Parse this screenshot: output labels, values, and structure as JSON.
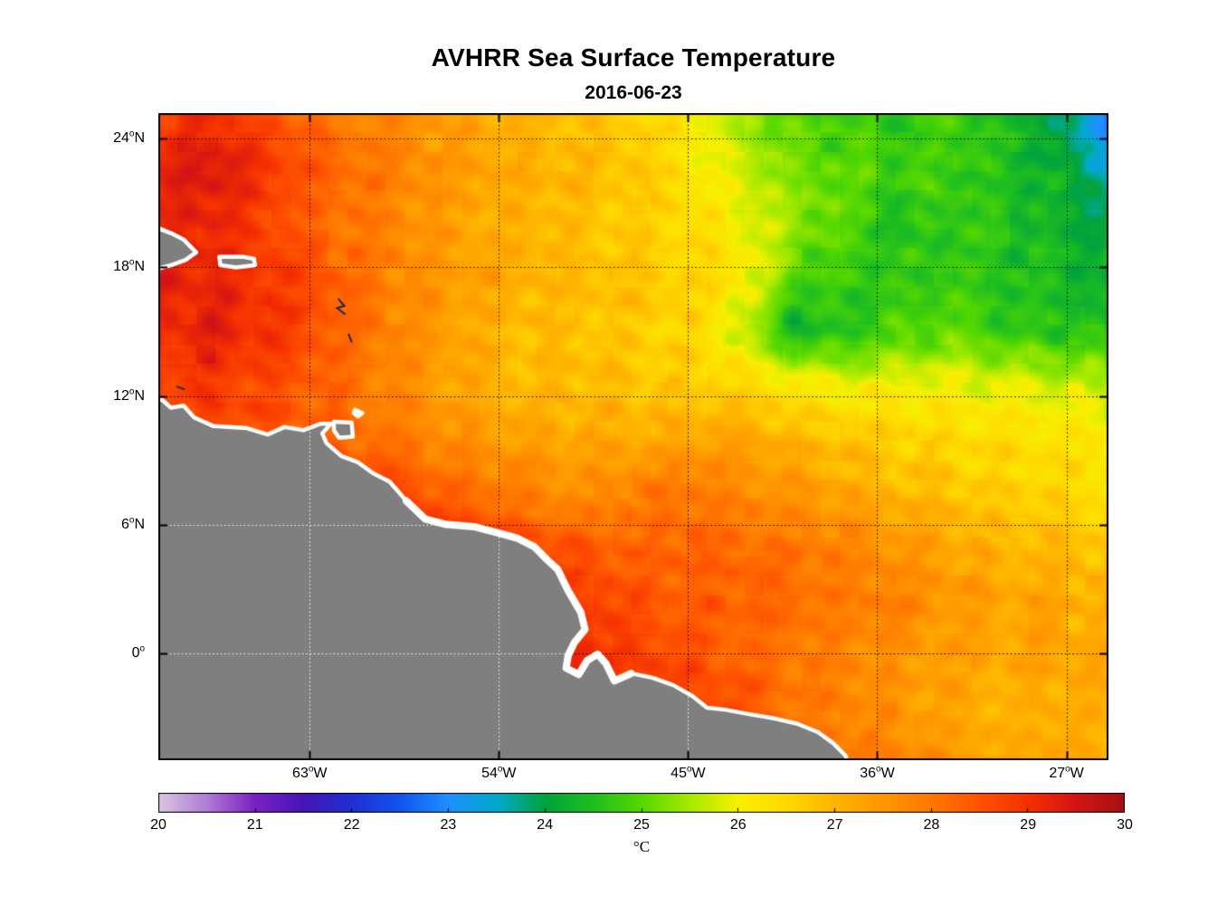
{
  "title": "AVHRR Sea Surface Temperature",
  "subtitle": "2016-06-23",
  "chart_data": {
    "type": "heatmap",
    "title": "AVHRR Sea Surface Temperature",
    "subtitle": "2016-06-23",
    "units": "degC",
    "projection": {
      "lon_range": [
        -70.2,
        -25.0
      ],
      "lat_range": [
        -5.0,
        25.2
      ]
    },
    "axes": {
      "grid_style": "dotted",
      "lat_ticks": [
        {
          "deg": 24,
          "text": "24",
          "suffix": "N"
        },
        {
          "deg": 18,
          "text": "18",
          "suffix": "N"
        },
        {
          "deg": 12,
          "text": "12",
          "suffix": "N"
        },
        {
          "deg": 6,
          "text": "6",
          "suffix": "N"
        },
        {
          "deg": 0,
          "text": "0",
          "suffix": ""
        }
      ],
      "lon_ticks": [
        {
          "deg": -63,
          "text": "63",
          "suffix": "W"
        },
        {
          "deg": -54,
          "text": "54",
          "suffix": "W"
        },
        {
          "deg": -45,
          "text": "45",
          "suffix": "W"
        },
        {
          "deg": -36,
          "text": "36",
          "suffix": "W"
        },
        {
          "deg": -27,
          "text": "27",
          "suffix": "W"
        }
      ]
    },
    "colorbar": {
      "min": 20,
      "max": 30,
      "label": "°C",
      "tick_labels": [
        "20",
        "21",
        "22",
        "23",
        "24",
        "25",
        "26",
        "27",
        "28",
        "29",
        "30"
      ],
      "colormap_stops": [
        {
          "v": 20.0,
          "c": "#D9C6DE"
        },
        {
          "v": 20.5,
          "c": "#B07CD4"
        },
        {
          "v": 21.0,
          "c": "#7A1FC4"
        },
        {
          "v": 21.5,
          "c": "#4415B8"
        },
        {
          "v": 22.0,
          "c": "#1F2FD4"
        },
        {
          "v": 22.5,
          "c": "#1155EE"
        },
        {
          "v": 23.0,
          "c": "#1E8FFF"
        },
        {
          "v": 23.5,
          "c": "#00AACC"
        },
        {
          "v": 24.0,
          "c": "#00A33C"
        },
        {
          "v": 24.5,
          "c": "#1FBF1F"
        },
        {
          "v": 25.0,
          "c": "#55D800"
        },
        {
          "v": 25.5,
          "c": "#A6EA00"
        },
        {
          "v": 26.0,
          "c": "#F7F000"
        },
        {
          "v": 26.5,
          "c": "#FFD800"
        },
        {
          "v": 27.0,
          "c": "#FFB400"
        },
        {
          "v": 27.5,
          "c": "#FF9600"
        },
        {
          "v": 28.0,
          "c": "#FF7800"
        },
        {
          "v": 28.5,
          "c": "#FF5200"
        },
        {
          "v": 29.0,
          "c": "#F53000"
        },
        {
          "v": 29.5,
          "c": "#D41414"
        },
        {
          "v": 30.0,
          "c": "#A61010"
        }
      ]
    },
    "sst_grid": {
      "lons": [
        -70,
        -67.5,
        -65,
        -62.5,
        -60,
        -57.5,
        -55,
        -52.5,
        -50,
        -47.5,
        -45,
        -42.5,
        -40,
        -37.5,
        -35,
        -32.5,
        -30,
        -27.5,
        -25
      ],
      "lats": [
        25,
        22.5,
        20,
        17.5,
        15,
        12.5,
        10,
        7.5,
        5,
        2.5,
        0,
        -2.5,
        -5
      ],
      "values_degC": [
        [
          28.8,
          29.0,
          28.6,
          28.1,
          27.8,
          27.5,
          27.2,
          27.0,
          26.8,
          26.6,
          26.2,
          25.4,
          25.0,
          24.8,
          24.7,
          24.8,
          24.5,
          24.0,
          22.8
        ],
        [
          29.3,
          29.5,
          28.9,
          28.4,
          28.0,
          27.6,
          27.3,
          27.1,
          27.0,
          26.8,
          26.3,
          25.8,
          25.2,
          25.0,
          24.8,
          24.8,
          24.5,
          24.2,
          23.6
        ],
        [
          29.1,
          29.2,
          28.7,
          28.2,
          27.9,
          27.5,
          27.2,
          27.0,
          26.8,
          26.6,
          26.4,
          26.0,
          25.4,
          25.0,
          24.5,
          24.7,
          24.6,
          24.3,
          24.0
        ],
        [
          29.3,
          29.2,
          28.9,
          28.5,
          28.0,
          27.6,
          27.3,
          27.0,
          26.9,
          26.8,
          26.6,
          26.2,
          25.0,
          24.7,
          24.6,
          24.8,
          24.5,
          24.5,
          24.2
        ],
        [
          29.0,
          29.3,
          29.0,
          28.5,
          28.0,
          27.5,
          27.1,
          26.9,
          26.8,
          26.7,
          26.5,
          25.8,
          24.3,
          24.6,
          24.9,
          25.0,
          24.8,
          24.6,
          24.5
        ],
        [
          28.8,
          28.9,
          28.6,
          28.3,
          27.9,
          27.5,
          27.1,
          26.9,
          26.9,
          26.8,
          26.7,
          26.5,
          26.2,
          26.0,
          26.0,
          26.0,
          25.9,
          25.8,
          25.6
        ],
        [
          28.6,
          28.6,
          28.5,
          28.4,
          28.1,
          27.8,
          27.5,
          27.3,
          27.2,
          27.1,
          27.3,
          27.3,
          27.0,
          26.8,
          26.6,
          26.5,
          26.4,
          26.3,
          26.2
        ],
        [
          29.0,
          29.0,
          29.0,
          29.0,
          28.9,
          28.5,
          28.1,
          27.8,
          27.6,
          27.9,
          28.0,
          27.8,
          27.5,
          27.2,
          27.0,
          26.8,
          26.6,
          26.5,
          26.4
        ],
        [
          29.2,
          29.2,
          29.2,
          29.2,
          29.2,
          29.0,
          28.9,
          28.6,
          28.4,
          28.2,
          28.3,
          28.2,
          28.0,
          27.8,
          27.5,
          27.2,
          27.0,
          27.0,
          26.8
        ],
        [
          29.3,
          29.3,
          29.3,
          29.3,
          29.3,
          29.2,
          29.1,
          29.0,
          28.8,
          28.5,
          28.4,
          28.3,
          28.2,
          28.0,
          27.8,
          27.5,
          27.3,
          27.2,
          27.0
        ],
        [
          29.4,
          29.4,
          29.4,
          29.4,
          29.4,
          29.4,
          29.3,
          29.2,
          29.1,
          28.7,
          28.5,
          28.2,
          28.0,
          27.8,
          27.5,
          27.3,
          27.2,
          27.3,
          27.1
        ],
        [
          29.4,
          29.4,
          29.4,
          29.4,
          29.4,
          29.4,
          29.4,
          29.3,
          29.2,
          29.0,
          28.8,
          28.5,
          28.1,
          27.8,
          27.5,
          27.2,
          27.0,
          27.2,
          27.0
        ],
        [
          29.4,
          29.4,
          29.4,
          29.4,
          29.4,
          29.4,
          29.4,
          29.4,
          29.3,
          29.1,
          28.9,
          28.7,
          28.3,
          28.0,
          27.8,
          27.4,
          27.2,
          27.3,
          27.0
        ]
      ]
    },
    "land": {
      "fill_color": "#7F7F7F",
      "coast_color": "#FFFFFF",
      "mainland": [
        [
          -70.5,
          11.9
        ],
        [
          -70.0,
          11.8
        ],
        [
          -69.6,
          11.45
        ],
        [
          -69.0,
          11.55
        ],
        [
          -68.5,
          11.0
        ],
        [
          -67.6,
          10.6
        ],
        [
          -66.0,
          10.5
        ],
        [
          -65.0,
          10.2
        ],
        [
          -64.2,
          10.55
        ],
        [
          -63.3,
          10.4
        ],
        [
          -62.5,
          10.7
        ],
        [
          -62.0,
          10.7
        ],
        [
          -62.4,
          10.25
        ],
        [
          -62.2,
          9.8
        ],
        [
          -61.5,
          9.2
        ],
        [
          -60.7,
          8.9
        ],
        [
          -60.0,
          8.4
        ],
        [
          -59.2,
          8.0
        ],
        [
          -58.4,
          7.1
        ],
        [
          -57.5,
          6.25
        ],
        [
          -56.5,
          6.0
        ],
        [
          -55.2,
          5.9
        ],
        [
          -54.0,
          5.6
        ],
        [
          -53.1,
          5.35
        ],
        [
          -52.3,
          4.95
        ],
        [
          -51.7,
          4.35
        ],
        [
          -51.2,
          3.9
        ],
        [
          -50.7,
          2.9
        ],
        [
          -50.1,
          1.9
        ],
        [
          -49.9,
          1.1
        ],
        [
          -50.4,
          0.5
        ],
        [
          -50.7,
          -0.1
        ],
        [
          -50.8,
          -0.7
        ],
        [
          -50.2,
          -1.0
        ],
        [
          -49.8,
          -0.35
        ],
        [
          -49.3,
          -0.05
        ],
        [
          -48.9,
          -0.5
        ],
        [
          -48.5,
          -1.3
        ],
        [
          -47.7,
          -0.95
        ],
        [
          -46.7,
          -1.15
        ],
        [
          -45.7,
          -1.5
        ],
        [
          -44.8,
          -2.0
        ],
        [
          -44.1,
          -2.55
        ],
        [
          -43.2,
          -2.65
        ],
        [
          -42.1,
          -2.85
        ],
        [
          -40.9,
          -3.05
        ],
        [
          -39.8,
          -3.3
        ],
        [
          -38.8,
          -3.7
        ],
        [
          -38.1,
          -4.2
        ],
        [
          -37.5,
          -4.8
        ],
        [
          -37.3,
          -5.6
        ],
        [
          -70.5,
          -5.6
        ]
      ],
      "islands": {
        "hispaniola": [
          [
            -70.4,
            19.9
          ],
          [
            -69.6,
            19.6
          ],
          [
            -69.0,
            19.3
          ],
          [
            -68.4,
            18.7
          ],
          [
            -68.9,
            18.35
          ],
          [
            -69.6,
            18.1
          ],
          [
            -70.4,
            17.9
          ]
        ],
        "puerto_rico": [
          [
            -67.3,
            18.5
          ],
          [
            -66.2,
            18.5
          ],
          [
            -65.65,
            18.4
          ],
          [
            -65.6,
            18.1
          ],
          [
            -66.5,
            18.0
          ],
          [
            -67.25,
            18.1
          ]
        ],
        "trinidad": [
          [
            -61.85,
            10.8
          ],
          [
            -61.0,
            10.75
          ],
          [
            -60.95,
            10.1
          ],
          [
            -61.6,
            10.05
          ],
          [
            -61.85,
            10.4
          ]
        ],
        "tobago": [
          [
            -60.85,
            11.35
          ],
          [
            -60.5,
            11.2
          ],
          [
            -60.7,
            11.05
          ],
          [
            -60.9,
            11.2
          ]
        ]
      },
      "small_island_marks": [
        [
          [
            -61.65,
            16.55
          ],
          [
            -61.35,
            16.2
          ],
          [
            -61.7,
            16.1
          ],
          [
            -61.3,
            15.8
          ]
        ],
        [
          [
            -61.15,
            14.9
          ],
          [
            -61.0,
            14.5
          ]
        ],
        [
          [
            -69.35,
            12.45
          ],
          [
            -68.95,
            12.3
          ]
        ]
      ]
    }
  }
}
